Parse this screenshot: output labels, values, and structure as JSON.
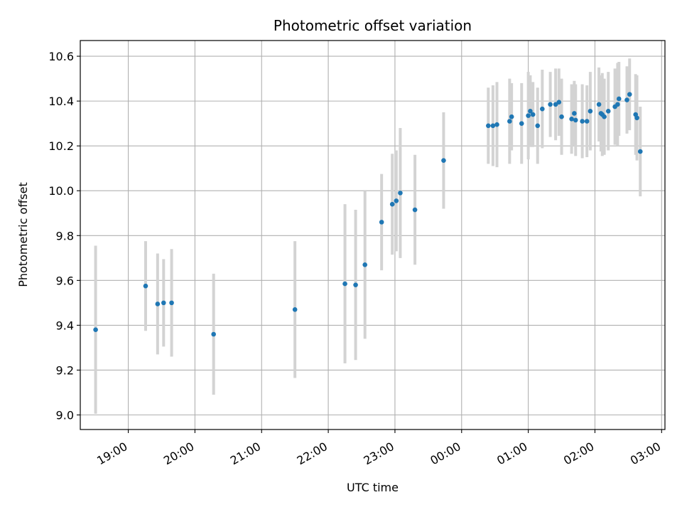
{
  "chart_data": {
    "type": "scatter",
    "title": "Photometric offset variation",
    "xlabel": "UTC time",
    "ylabel": "Photometric offset",
    "x_unit": "hours since 00:00 UTC (negative = previous day)",
    "xlim": [
      -5.72,
      3.05
    ],
    "ylim": [
      8.935,
      10.67
    ],
    "grid": true,
    "x_ticks": [
      {
        "value": -5,
        "label": "19:00"
      },
      {
        "value": -4,
        "label": "20:00"
      },
      {
        "value": -3,
        "label": "21:00"
      },
      {
        "value": -2,
        "label": "22:00"
      },
      {
        "value": -1,
        "label": "23:00"
      },
      {
        "value": 0,
        "label": "00:00"
      },
      {
        "value": 1,
        "label": "01:00"
      },
      {
        "value": 2,
        "label": "02:00"
      },
      {
        "value": 3,
        "label": "03:00"
      }
    ],
    "y_ticks": [
      {
        "value": 9.0,
        "label": "9.0"
      },
      {
        "value": 9.2,
        "label": "9.2"
      },
      {
        "value": 9.4,
        "label": "9.4"
      },
      {
        "value": 9.6,
        "label": "9.6"
      },
      {
        "value": 9.8,
        "label": "9.8"
      },
      {
        "value": 10.0,
        "label": "10.0"
      },
      {
        "value": 10.2,
        "label": "10.2"
      },
      {
        "value": 10.4,
        "label": "10.4"
      },
      {
        "value": 10.6,
        "label": "10.6"
      }
    ],
    "colors": {
      "point": "#1f77b4",
      "errorbar": "#d3d3d3",
      "grid": "#b0b0b0"
    },
    "series": [
      {
        "name": "offset",
        "points": [
          {
            "x": -5.49,
            "y": 9.38,
            "err": 0.375
          },
          {
            "x": -4.74,
            "y": 9.575,
            "err": 0.2
          },
          {
            "x": -4.56,
            "y": 9.495,
            "err": 0.225
          },
          {
            "x": -4.47,
            "y": 9.5,
            "err": 0.195
          },
          {
            "x": -4.35,
            "y": 9.5,
            "err": 0.24
          },
          {
            "x": -3.72,
            "y": 9.36,
            "err": 0.27
          },
          {
            "x": -2.5,
            "y": 9.47,
            "err": 0.305
          },
          {
            "x": -1.75,
            "y": 9.585,
            "err": 0.355
          },
          {
            "x": -1.59,
            "y": 9.58,
            "err": 0.335
          },
          {
            "x": -1.45,
            "y": 9.67,
            "err": 0.33
          },
          {
            "x": -1.2,
            "y": 9.86,
            "err": 0.215
          },
          {
            "x": -1.04,
            "y": 9.94,
            "err": 0.225
          },
          {
            "x": -0.98,
            "y": 9.955,
            "err": 0.225
          },
          {
            "x": -0.92,
            "y": 9.99,
            "err": 0.29
          },
          {
            "x": -0.7,
            "y": 9.915,
            "err": 0.245
          },
          {
            "x": -0.27,
            "y": 10.135,
            "err": 0.215
          },
          {
            "x": 0.4,
            "y": 10.29,
            "err": 0.17
          },
          {
            "x": 0.47,
            "y": 10.29,
            "err": 0.18
          },
          {
            "x": 0.53,
            "y": 10.295,
            "err": 0.19
          },
          {
            "x": 0.72,
            "y": 10.31,
            "err": 0.19
          },
          {
            "x": 0.75,
            "y": 10.33,
            "err": 0.15
          },
          {
            "x": 0.9,
            "y": 10.3,
            "err": 0.18
          },
          {
            "x": 1.0,
            "y": 10.335,
            "err": 0.195
          },
          {
            "x": 1.03,
            "y": 10.355,
            "err": 0.16
          },
          {
            "x": 1.07,
            "y": 10.34,
            "err": 0.145
          },
          {
            "x": 1.14,
            "y": 10.29,
            "err": 0.17
          },
          {
            "x": 1.21,
            "y": 10.365,
            "err": 0.175
          },
          {
            "x": 1.33,
            "y": 10.385,
            "err": 0.145
          },
          {
            "x": 1.41,
            "y": 10.385,
            "err": 0.16
          },
          {
            "x": 1.46,
            "y": 10.395,
            "err": 0.15
          },
          {
            "x": 1.5,
            "y": 10.33,
            "err": 0.17
          },
          {
            "x": 1.65,
            "y": 10.32,
            "err": 0.155
          },
          {
            "x": 1.69,
            "y": 10.345,
            "err": 0.145
          },
          {
            "x": 1.71,
            "y": 10.315,
            "err": 0.16
          },
          {
            "x": 1.81,
            "y": 10.31,
            "err": 0.165
          },
          {
            "x": 1.88,
            "y": 10.31,
            "err": 0.16
          },
          {
            "x": 1.93,
            "y": 10.355,
            "err": 0.175
          },
          {
            "x": 2.06,
            "y": 10.385,
            "err": 0.165
          },
          {
            "x": 2.09,
            "y": 10.345,
            "err": 0.17
          },
          {
            "x": 2.11,
            "y": 10.34,
            "err": 0.185
          },
          {
            "x": 2.14,
            "y": 10.33,
            "err": 0.17
          },
          {
            "x": 2.2,
            "y": 10.355,
            "err": 0.175
          },
          {
            "x": 2.3,
            "y": 10.375,
            "err": 0.17
          },
          {
            "x": 2.34,
            "y": 10.385,
            "err": 0.185
          },
          {
            "x": 2.36,
            "y": 10.41,
            "err": 0.165
          },
          {
            "x": 2.48,
            "y": 10.405,
            "err": 0.15
          },
          {
            "x": 2.52,
            "y": 10.43,
            "err": 0.16
          },
          {
            "x": 2.61,
            "y": 10.34,
            "err": 0.18
          },
          {
            "x": 2.63,
            "y": 10.325,
            "err": 0.19
          },
          {
            "x": 2.68,
            "y": 10.175,
            "err": 0.2
          }
        ]
      }
    ]
  }
}
